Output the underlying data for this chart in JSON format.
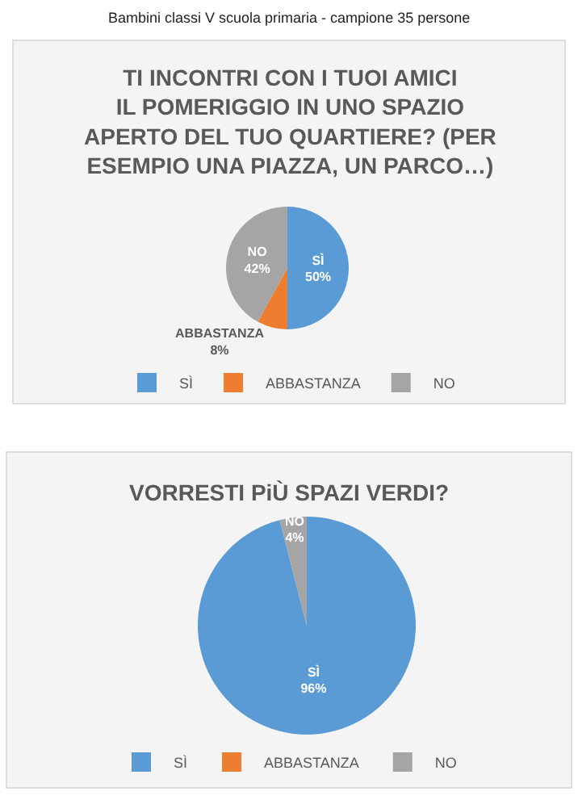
{
  "chart_data": [
    {
      "type": "pie",
      "title": "TI INCONTRI CON I TUOI AMICI IL POMERIGGIO IN UNO SPAZIO APERTO DEL TUO QUARTIERE? (PER ESEMPIO UNA PIAZZA, UN PARCO…)",
      "annotations": [
        "Bambini classi V scuola primaria - campione 35 persone"
      ],
      "categories": [
        "SÌ",
        "ABBASTANZA",
        "NO"
      ],
      "values": [
        50,
        8,
        42
      ],
      "colors": [
        "#5b9bd5",
        "#ed7d31",
        "#a5a5a5"
      ],
      "value_labels": [
        "50%",
        "8%",
        "42%"
      ],
      "legend": "bottom"
    },
    {
      "type": "pie",
      "title": "VORRESTI PiÙ SPAZI VERDI?",
      "categories": [
        "SÌ",
        "ABBASTANZA",
        "NO"
      ],
      "values": [
        96,
        0,
        4
      ],
      "colors": [
        "#5b9bd5",
        "#ed7d31",
        "#a5a5a5"
      ],
      "value_labels": [
        "96%",
        null,
        "4%"
      ],
      "legend": "bottom"
    }
  ]
}
